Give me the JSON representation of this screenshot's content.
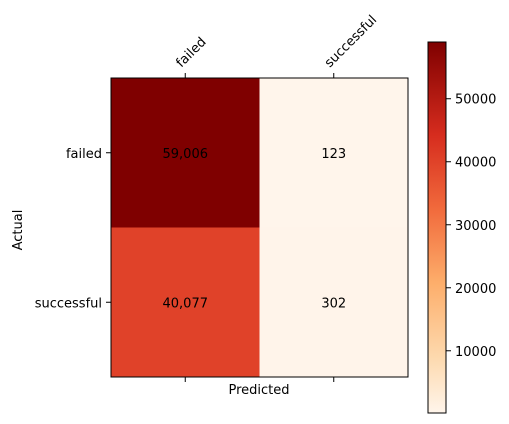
{
  "chart_data": {
    "type": "heatmap",
    "title": "",
    "xlabel": "Predicted",
    "ylabel": "Actual",
    "x_categories": [
      "failed",
      "successful"
    ],
    "y_categories": [
      "failed",
      "successful"
    ],
    "values": [
      [
        59006,
        123
      ],
      [
        40077,
        302
      ]
    ],
    "cell_labels": [
      [
        "59,006",
        "123"
      ],
      [
        "40,077",
        "302"
      ]
    ],
    "colormap": "Reds (OrRd-style)",
    "colorbar": {
      "range": [
        123,
        59006
      ],
      "ticks": [
        10000,
        20000,
        30000,
        40000,
        50000
      ],
      "tick_labels": [
        "10000",
        "20000",
        "30000",
        "40000",
        "50000"
      ]
    },
    "x_tick_position": "top",
    "grid": false
  }
}
